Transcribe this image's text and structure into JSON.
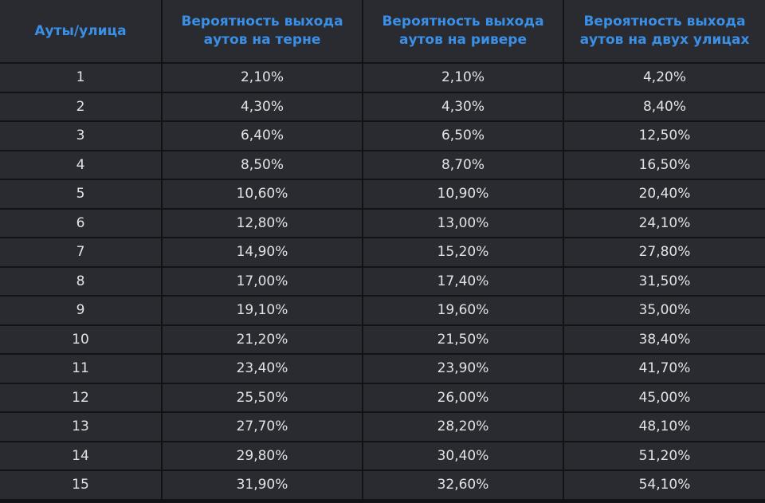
{
  "table": {
    "headers": [
      {
        "lines": [
          "Ауты/улица"
        ]
      },
      {
        "lines": [
          "Вероятность выхода",
          "аутов на терне"
        ]
      },
      {
        "lines": [
          "Вероятность выхода",
          "аутов на ривере"
        ]
      },
      {
        "lines": [
          "Вероятность выхода",
          "аутов на двух улицах"
        ]
      }
    ],
    "rows": [
      [
        "1",
        "2,10%",
        "2,10%",
        "4,20%"
      ],
      [
        "2",
        "4,30%",
        "4,30%",
        "8,40%"
      ],
      [
        "3",
        "6,40%",
        "6,50%",
        "12,50%"
      ],
      [
        "4",
        "8,50%",
        "8,70%",
        "16,50%"
      ],
      [
        "5",
        "10,60%",
        "10,90%",
        "20,40%"
      ],
      [
        "6",
        "12,80%",
        "13,00%",
        "24,10%"
      ],
      [
        "7",
        "14,90%",
        "15,20%",
        "27,80%"
      ],
      [
        "8",
        "17,00%",
        "17,40%",
        "31,50%"
      ],
      [
        "9",
        "19,10%",
        "19,60%",
        "35,00%"
      ],
      [
        "10",
        "21,20%",
        "21,50%",
        "38,40%"
      ],
      [
        "11",
        "23,40%",
        "23,90%",
        "41,70%"
      ],
      [
        "12",
        "25,50%",
        "26,00%",
        "45,00%"
      ],
      [
        "13",
        "27,70%",
        "28,20%",
        "48,10%"
      ],
      [
        "14",
        "29,80%",
        "30,40%",
        "51,20%"
      ],
      [
        "15",
        "31,90%",
        "32,60%",
        "54,10%"
      ]
    ]
  },
  "colors": {
    "header_text": "#3a8fe6",
    "cell_text": "#e2e3e6",
    "cell_bg": "#2a2b30",
    "grid_line": "#121316"
  }
}
